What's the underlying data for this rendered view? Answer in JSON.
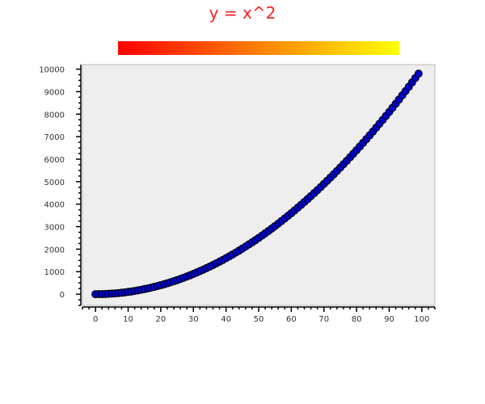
{
  "chart_data": {
    "type": "scatter",
    "title": "y = x^2",
    "title_color": "#ff2020",
    "colorbar": {
      "from": "#ff0000",
      "to": "#ffff00",
      "orientation": "horizontal",
      "position": "top",
      "ticks": "none"
    },
    "x": {
      "start": 0,
      "end": 99,
      "step": 1
    },
    "y_formula": "x^2",
    "xlim": [
      -4,
      104
    ],
    "ylim": [
      -500,
      10200
    ],
    "xticks": [
      0,
      10,
      20,
      30,
      40,
      50,
      60,
      70,
      80,
      90,
      100
    ],
    "yticks": [
      0,
      1000,
      2000,
      3000,
      4000,
      5000,
      6000,
      7000,
      8000,
      9000,
      10000
    ],
    "marker": {
      "fill": "#0000cc",
      "edge": "#000000",
      "shape": "circle"
    },
    "plot_background": "#eeeeee",
    "grid": false,
    "legend": "none",
    "xlabel": "",
    "ylabel": ""
  }
}
